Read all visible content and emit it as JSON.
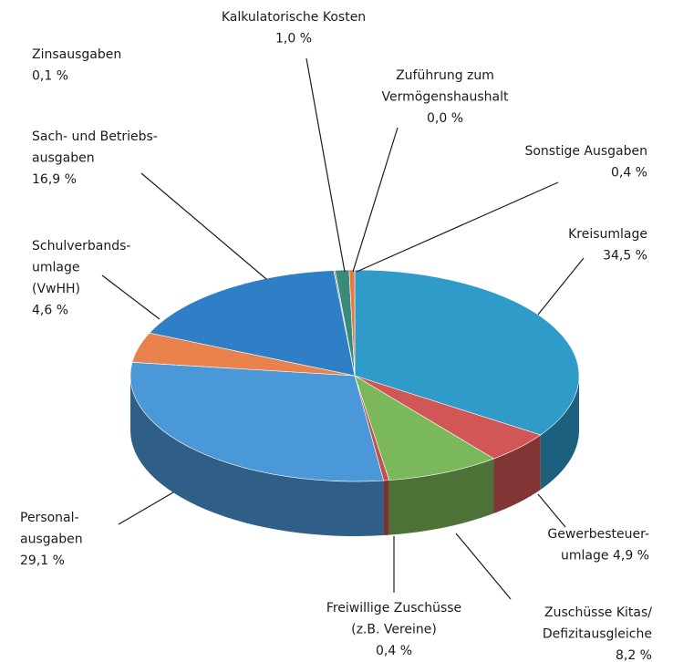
{
  "chart_data": {
    "type": "pie3d",
    "categories": [
      [
        "Kreisumlage"
      ],
      [
        "Gewerbesteuer-",
        "umlage"
      ],
      [
        "Zuschüsse Kitas/",
        "Defizitausgleiche"
      ],
      [
        "Freiwillige Zuschüsse",
        "(z.B. Vereine)"
      ],
      [
        "Personal-",
        "ausgaben"
      ],
      [
        "Schulverbands-",
        "umlage",
        "(VwHH)"
      ],
      [
        "Sach- und Betriebs-",
        "ausgaben"
      ],
      [
        "Zinsausgaben"
      ],
      [
        "Kalkulatorische Kosten"
      ],
      [
        "Zuführung zum",
        "Vermögenshaushalt"
      ],
      [
        "Sonstige Ausgaben"
      ]
    ],
    "values": [
      34.5,
      4.9,
      8.2,
      0.4,
      29.1,
      4.6,
      16.9,
      0.1,
      1.0,
      0.0,
      0.4
    ],
    "value_labels": [
      "34,5 %",
      "4,9 %",
      "8,2 %",
      "0,4 %",
      "29,1 %",
      "4,6 %",
      "16,9 %",
      "0,1 %",
      "1,0 %",
      "0,0 %",
      "0,4 %"
    ],
    "colors": [
      "#2f9bc9",
      "#d15656",
      "#7bb85b",
      "#c2504c",
      "#4b98d8",
      "#e8814b",
      "#2e7fc6",
      "#8a8a8a",
      "#3a8a7c",
      "#9a9a9a",
      "#e8793e"
    ]
  }
}
